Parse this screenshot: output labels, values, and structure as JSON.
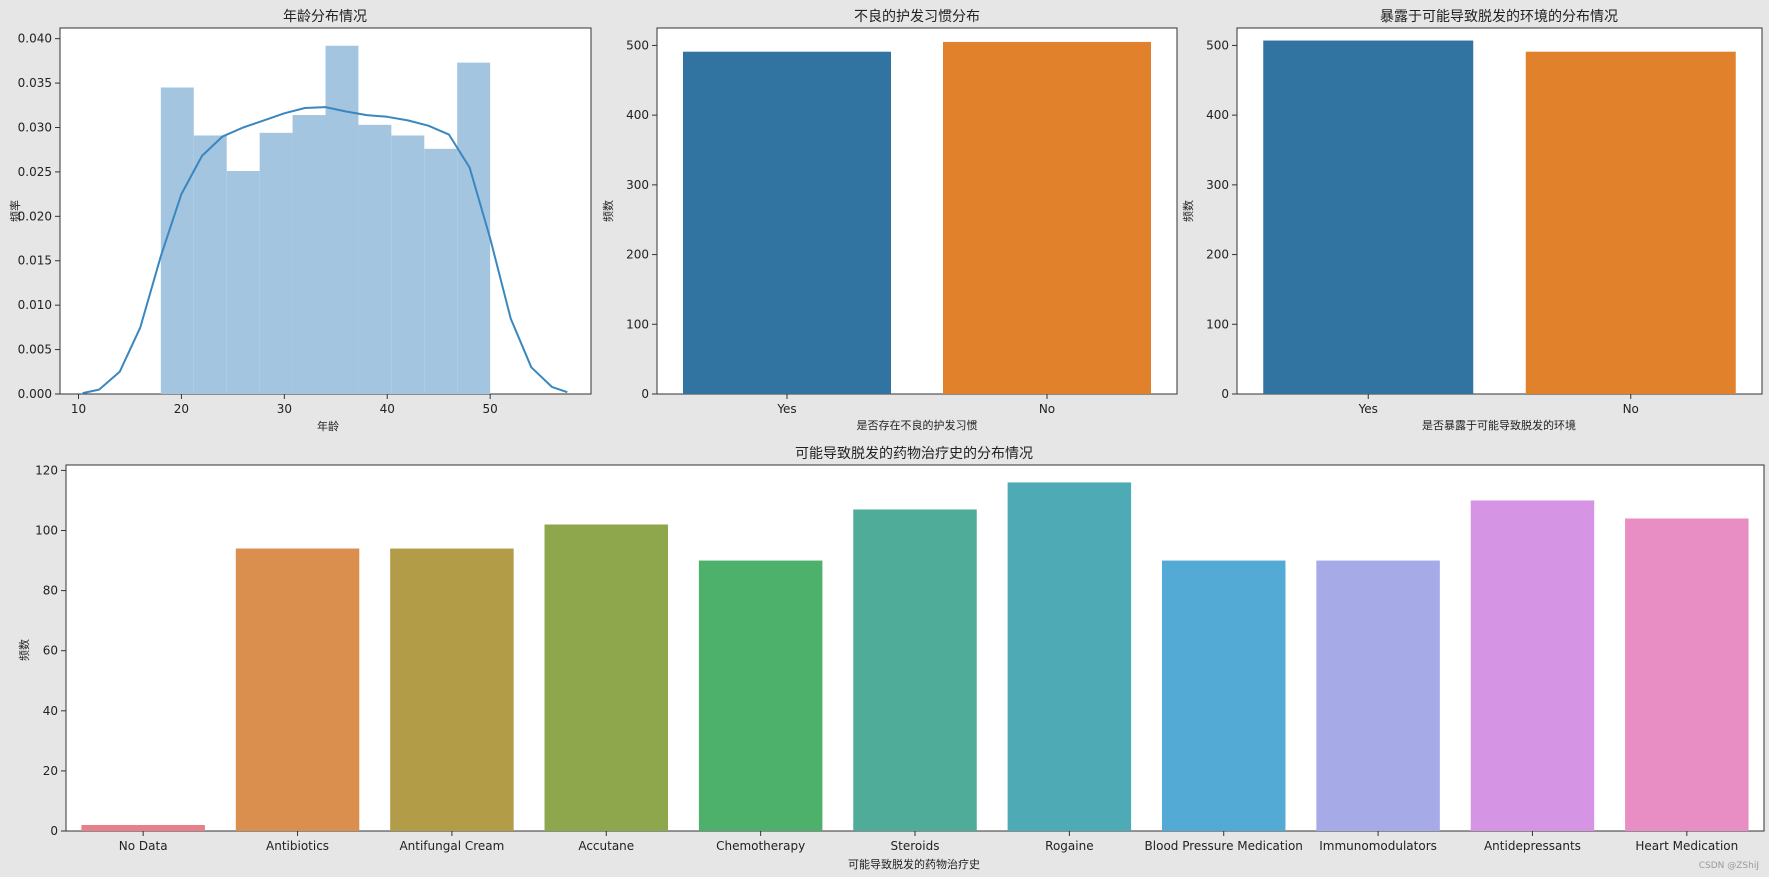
{
  "chart_data": [
    {
      "type": "histogram",
      "title": "年龄分布情况",
      "xlabel": "年龄",
      "ylabel": "频率",
      "xlim": [
        8.2,
        59.8
      ],
      "ylim": [
        0,
        0.0412
      ],
      "xticks": [
        10,
        20,
        30,
        40,
        50
      ],
      "xtick_labels": [
        "10",
        "20",
        "30",
        "40",
        "50"
      ],
      "yticks": [
        0,
        0.005,
        0.01,
        0.015,
        0.02,
        0.025,
        0.03,
        0.035,
        0.04
      ],
      "ytick_labels": [
        "0.000",
        "0.005",
        "0.010",
        "0.015",
        "0.020",
        "0.025",
        "0.030",
        "0.035",
        "0.040"
      ],
      "bins": [
        {
          "x0": 18.0,
          "x1": 21.2,
          "density": 0.0345
        },
        {
          "x0": 21.2,
          "x1": 24.4,
          "density": 0.0291
        },
        {
          "x0": 24.4,
          "x1": 27.6,
          "density": 0.0251
        },
        {
          "x0": 27.6,
          "x1": 30.8,
          "density": 0.0294
        },
        {
          "x0": 30.8,
          "x1": 34.0,
          "density": 0.0314
        },
        {
          "x0": 34.0,
          "x1": 37.2,
          "density": 0.0392
        },
        {
          "x0": 37.2,
          "x1": 40.4,
          "density": 0.0303
        },
        {
          "x0": 40.4,
          "x1": 43.6,
          "density": 0.0291
        },
        {
          "x0": 43.6,
          "x1": 46.8,
          "density": 0.0276
        },
        {
          "x0": 46.8,
          "x1": 50.0,
          "density": 0.0373
        }
      ],
      "kde": {
        "x": [
          10.4,
          12,
          14,
          16,
          18,
          20,
          22,
          24,
          26,
          28,
          30,
          32,
          34,
          36,
          38,
          40,
          42,
          44,
          46,
          48,
          50,
          52,
          54,
          56,
          57.5
        ],
        "y": [
          0.0001,
          0.0005,
          0.0025,
          0.0075,
          0.0155,
          0.0225,
          0.0268,
          0.029,
          0.03,
          0.0308,
          0.0316,
          0.0322,
          0.0323,
          0.0318,
          0.0314,
          0.0312,
          0.0308,
          0.0302,
          0.0292,
          0.0255,
          0.0175,
          0.0085,
          0.003,
          0.0008,
          0.0002
        ]
      },
      "bar_color": "#a3c5e0",
      "line_color": "#3a87c0"
    },
    {
      "type": "bar",
      "title": "不良的护发习惯分布",
      "xlabel": "是否存在不良的护发习惯",
      "ylabel": "频数",
      "categories": [
        "Yes",
        "No"
      ],
      "values": [
        491,
        505
      ],
      "colors": [
        "#3274a1",
        "#e1812c"
      ],
      "ylim": [
        0,
        525
      ],
      "yticks": [
        0,
        100,
        200,
        300,
        400,
        500
      ]
    },
    {
      "type": "bar",
      "title": "暴露于可能导致脱发的环境的分布情况",
      "xlabel": "是否暴露于可能导致脱发的环境",
      "ylabel": "频数",
      "categories": [
        "Yes",
        "No"
      ],
      "values": [
        507,
        491
      ],
      "colors": [
        "#3274a1",
        "#e1812c"
      ],
      "ylim": [
        0,
        525
      ],
      "yticks": [
        0,
        100,
        200,
        300,
        400,
        500
      ]
    },
    {
      "type": "bar",
      "title": "可能导致脱发的药物治疗史的分布情况",
      "xlabel": "可能导致脱发的药物治疗史",
      "ylabel": "频数",
      "categories": [
        "No Data",
        "Antibiotics",
        "Antifungal Cream",
        "Accutane",
        "Chemotherapy",
        "Steroids",
        "Rogaine",
        "Blood Pressure Medication",
        "Immunomodulators",
        "Antidepressants",
        "Heart Medication"
      ],
      "values": [
        2,
        94,
        94,
        102,
        90,
        107,
        116,
        90,
        90,
        110,
        104
      ],
      "colors": [
        "#e8808c",
        "#da8f4f",
        "#b39c48",
        "#8ea64c",
        "#4db16c",
        "#4fac99",
        "#4eabb5",
        "#53abd5",
        "#a6abe8",
        "#d594e4",
        "#e88ec4"
      ],
      "ylim": [
        0,
        121.8
      ],
      "yticks": [
        0,
        20,
        40,
        60,
        80,
        100,
        120
      ]
    }
  ],
  "watermark": "CSDN @ZShiJ"
}
